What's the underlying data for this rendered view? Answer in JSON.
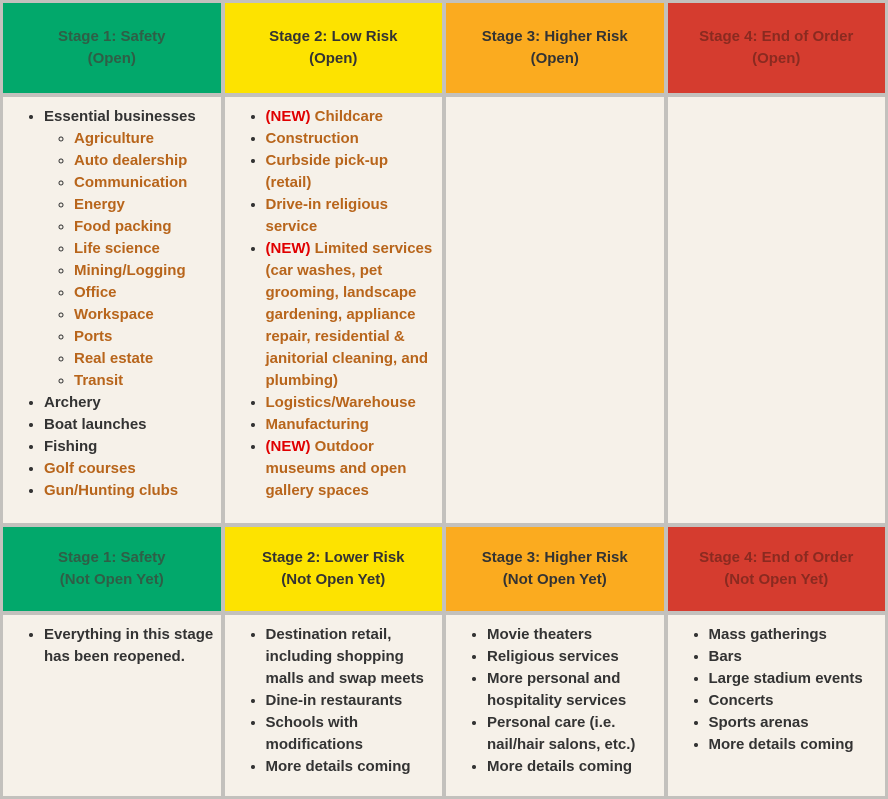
{
  "sections": [
    {
      "headers": [
        {
          "title": "Stage 1: Safety",
          "status": "(Open)",
          "background": "#02a86b",
          "color": "#2f5e46"
        },
        {
          "title": "Stage 2: Low Risk",
          "status": "(Open)",
          "background": "#fde300",
          "color": "#333333"
        },
        {
          "title": "Stage 3: Higher Risk",
          "status": "(Open)",
          "background": "#fbab1f",
          "color": "#333333"
        },
        {
          "title": "Stage 4: End of Order",
          "status": "(Open)",
          "background": "#d53c2f",
          "color": "#8a2a20"
        }
      ],
      "cells": [
        {
          "items": [
            {
              "text": "Essential businesses",
              "color": "#333333",
              "children": [
                {
                  "text": "Agriculture",
                  "color": "#b8651b"
                },
                {
                  "text": "Auto dealership",
                  "color": "#b8651b"
                },
                {
                  "text": "Communication",
                  "color": "#b8651b"
                },
                {
                  "text": "Energy",
                  "color": "#b8651b"
                },
                {
                  "text": "Food packing",
                  "color": "#b8651b"
                },
                {
                  "text": "Life science",
                  "color": "#b8651b"
                },
                {
                  "text": "Mining/Logging",
                  "color": "#b8651b"
                },
                {
                  "text": "Office",
                  "color": "#b8651b"
                },
                {
                  "text": "Workspace",
                  "color": "#b8651b"
                },
                {
                  "text": "Ports",
                  "color": "#b8651b"
                },
                {
                  "text": "Real estate",
                  "color": "#b8651b"
                },
                {
                  "text": "Transit",
                  "color": "#b8651b"
                }
              ]
            },
            {
              "text": "Archery",
              "color": "#333333"
            },
            {
              "text": "Boat launches",
              "color": "#333333"
            },
            {
              "text": "Fishing",
              "color": "#333333"
            },
            {
              "text": "Golf courses",
              "color": "#b8651b"
            },
            {
              "text": "Gun/Hunting clubs",
              "color": "#b8651b"
            }
          ]
        },
        {
          "items": [
            {
              "tag": "(NEW)",
              "tag_color": "#e00000",
              "text": "Childcare",
              "color": "#b8651b"
            },
            {
              "text": "Construction",
              "color": "#b8651b"
            },
            {
              "text": "Curbside pick-up (retail)",
              "color": "#b8651b"
            },
            {
              "text": "Drive-in religious service",
              "color": "#b8651b"
            },
            {
              "tag": "(NEW)",
              "tag_color": "#e00000",
              "text": "Limited services (car washes, pet grooming, landscape gardening, appliance repair, residential & janitorial cleaning, and plumbing)",
              "color": "#b8651b"
            },
            {
              "text": "Logistics/Warehouse",
              "color": "#b8651b"
            },
            {
              "text": "Manufacturing",
              "color": "#b8651b"
            },
            {
              "tag": "(NEW)",
              "tag_color": "#e00000",
              "text": "Outdoor museums and open gallery spaces",
              "color": "#b8651b"
            }
          ]
        },
        {
          "items": []
        },
        {
          "items": []
        }
      ]
    },
    {
      "headers": [
        {
          "title": "Stage 1: Safety",
          "status": "(Not Open Yet)",
          "background": "#02a86b",
          "color": "#2f5e46"
        },
        {
          "title": "Stage 2: Lower Risk",
          "status": "(Not Open Yet)",
          "background": "#fde300",
          "color": "#333333"
        },
        {
          "title": "Stage 3: Higher Risk",
          "status": "(Not Open Yet)",
          "background": "#fbab1f",
          "color": "#333333"
        },
        {
          "title": "Stage 4: End of Order",
          "status": "(Not Open Yet)",
          "background": "#d53c2f",
          "color": "#8a2a20"
        }
      ],
      "cells": [
        {
          "items": [
            {
              "text": "Everything in this stage has been reopened.",
              "color": "#333333"
            }
          ]
        },
        {
          "items": [
            {
              "text": "Destination retail, including shopping malls and swap meets",
              "color": "#333333"
            },
            {
              "text": "Dine-in restaurants",
              "color": "#333333"
            },
            {
              "text": "Schools with modifications",
              "color": "#333333"
            },
            {
              "text": "More details coming",
              "color": "#333333"
            }
          ]
        },
        {
          "items": [
            {
              "text": "Movie theaters",
              "color": "#333333"
            },
            {
              "text": "Religious services",
              "color": "#333333"
            },
            {
              "text": "More personal and hospitality services",
              "color": "#333333"
            },
            {
              "text": "Personal care (i.e. nail/hair salons, etc.)",
              "color": "#333333"
            },
            {
              "text": "More details coming",
              "color": "#333333"
            }
          ]
        },
        {
          "items": [
            {
              "text": "Mass gatherings",
              "color": "#333333"
            },
            {
              "text": "Bars",
              "color": "#333333"
            },
            {
              "text": "Large stadium events",
              "color": "#333333"
            },
            {
              "text": "Concerts",
              "color": "#333333"
            },
            {
              "text": "Sports arenas",
              "color": "#333333"
            },
            {
              "text": "More details coming",
              "color": "#333333"
            }
          ]
        }
      ]
    }
  ]
}
